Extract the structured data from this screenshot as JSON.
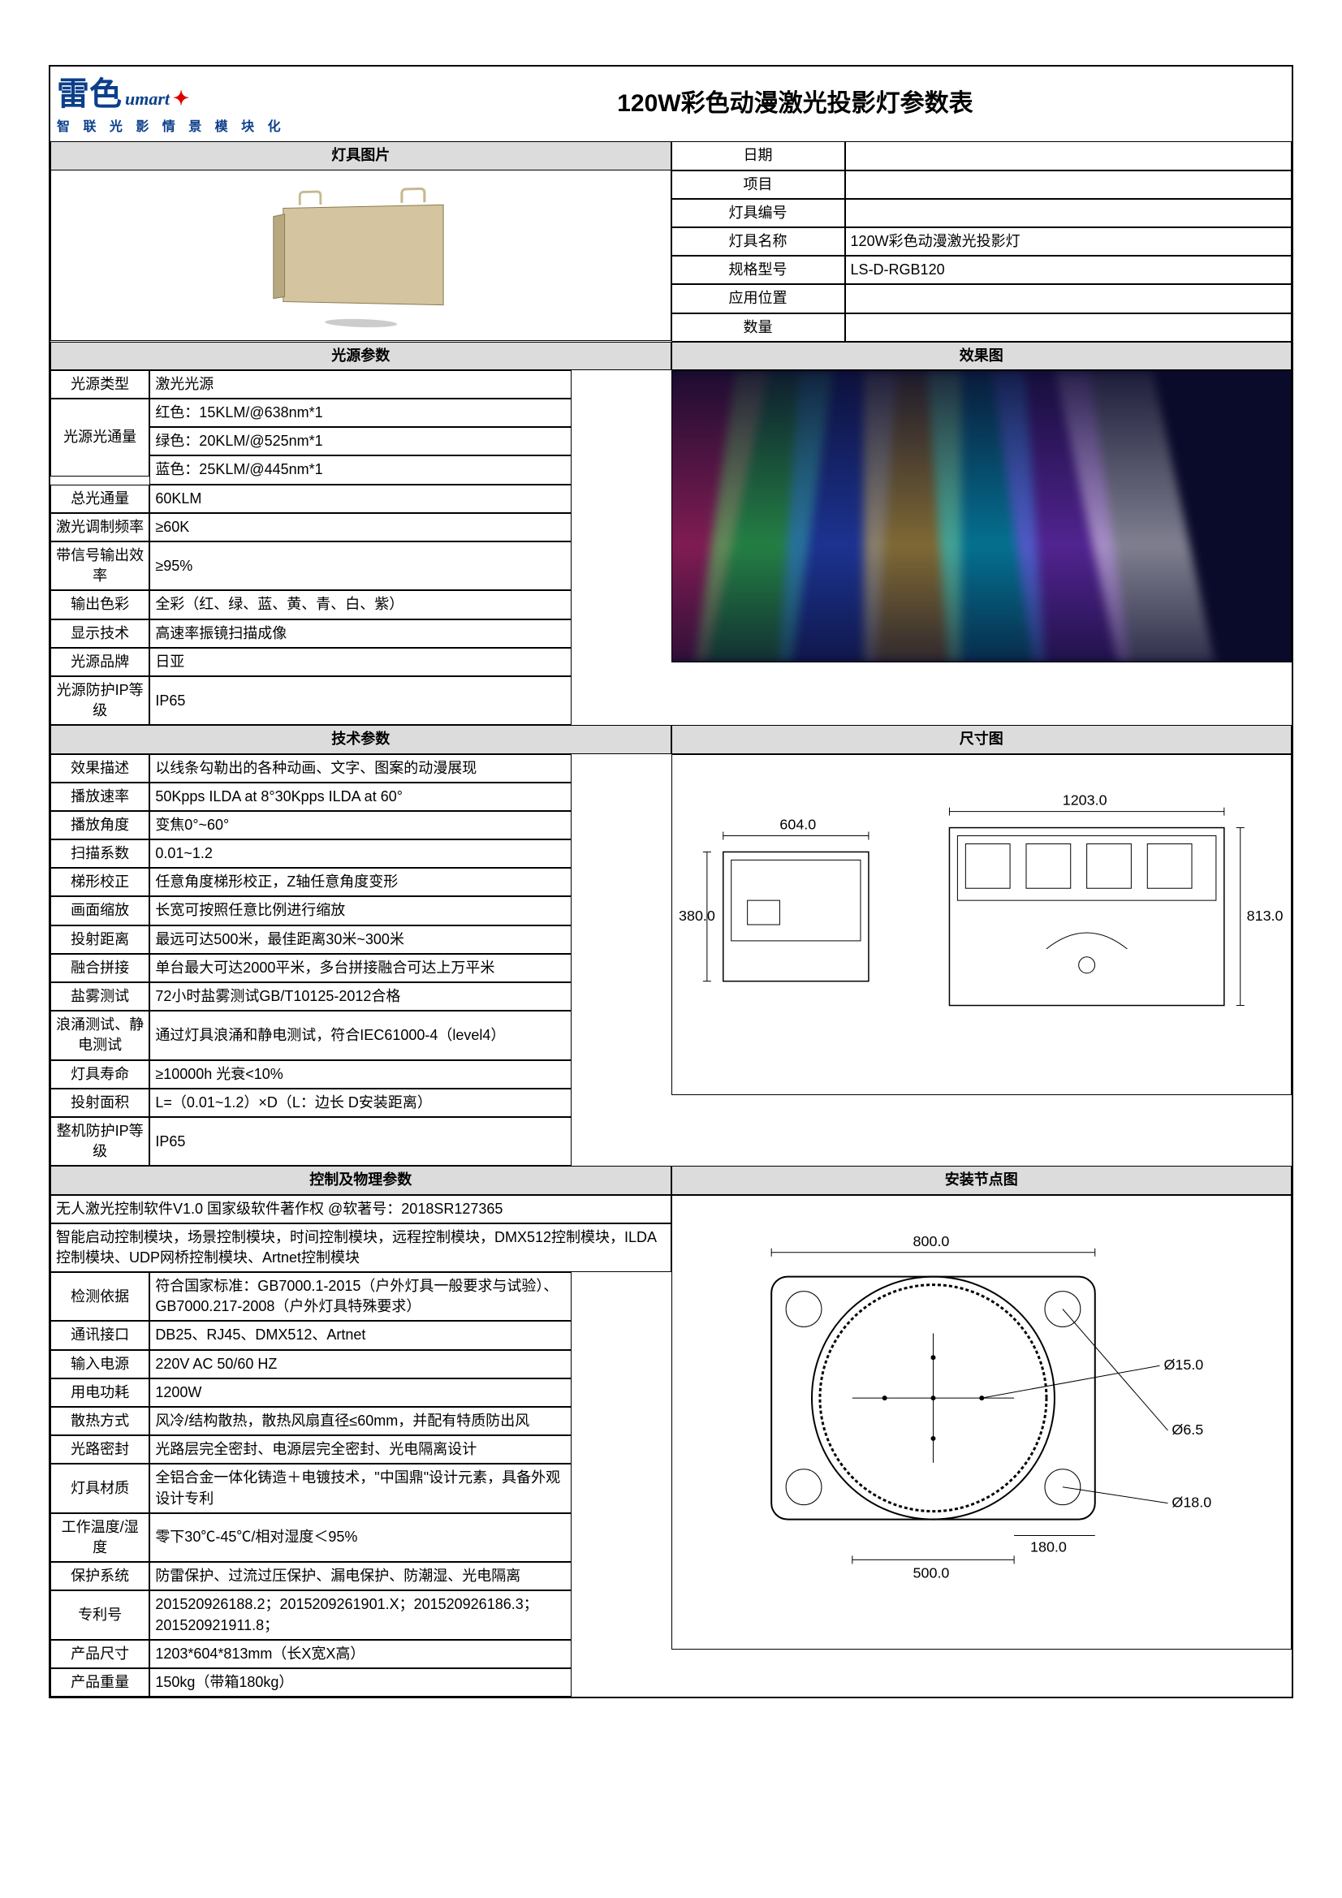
{
  "logo": {
    "cn": "雷色",
    "en": "umart",
    "tagline": "智 联 光 影 情 景 模 块 化"
  },
  "title": "120W彩色动漫激光投影灯参数表",
  "top": {
    "photo_label": "灯具图片",
    "fields": [
      {
        "label": "日期",
        "value": ""
      },
      {
        "label": "项目",
        "value": ""
      },
      {
        "label": "灯具编号",
        "value": ""
      },
      {
        "label": "灯具名称",
        "value": "120W彩色动漫激光投影灯"
      },
      {
        "label": "规格型号",
        "value": "LS-D-RGB120"
      },
      {
        "label": "应用位置",
        "value": ""
      },
      {
        "label": "数量",
        "value": ""
      }
    ]
  },
  "sections": [
    {
      "left": "光源参数",
      "right": "效果图"
    },
    {
      "left": "技术参数",
      "right": "尺寸图"
    },
    {
      "left": "控制及物理参数",
      "right": "安装节点图"
    }
  ],
  "light_source": [
    {
      "label": "光源类型",
      "value": "激光光源"
    },
    {
      "label": "光源光通量",
      "values": [
        "红色：15KLM/@638nm*1",
        "绿色：20KLM/@525nm*1",
        "蓝色：25KLM/@445nm*1"
      ]
    },
    {
      "label": "总光通量",
      "value": "60KLM"
    },
    {
      "label": "激光调制频率",
      "value": "≥60K"
    },
    {
      "label": "带信号输出效率",
      "value": "≥95%"
    },
    {
      "label": "输出色彩",
      "value": "全彩（红、绿、蓝、黄、青、白、紫）"
    },
    {
      "label": "显示技术",
      "value": "高速率振镜扫描成像"
    },
    {
      "label": "光源品牌",
      "value": "日亚"
    },
    {
      "label": "光源防护IP等级",
      "value": "IP65"
    }
  ],
  "tech": [
    {
      "label": "效果描述",
      "value": "以线条勾勒出的各种动画、文字、图案的动漫展现"
    },
    {
      "label": "播放速率",
      "value": "50Kpps ILDA at 8°30Kpps ILDA at 60°"
    },
    {
      "label": "播放角度",
      "value": "变焦0°~60°"
    },
    {
      "label": "扫描系数",
      "value": "0.01~1.2"
    },
    {
      "label": "梯形校正",
      "value": "任意角度梯形校正，Z轴任意角度变形"
    },
    {
      "label": "画面缩放",
      "value": "长宽可按照任意比例进行缩放"
    },
    {
      "label": "投射距离",
      "value": "最远可达500米，最佳距离30米~300米"
    },
    {
      "label": "融合拼接",
      "value": "单台最大可达2000平米，多台拼接融合可达上万平米"
    },
    {
      "label": "盐雾测试",
      "value": "72小时盐雾测试GB/T10125-2012合格"
    },
    {
      "label": "浪涌测试、静电测试",
      "value": "通过灯具浪涌和静电测试，符合IEC61000-4（level4）"
    },
    {
      "label": "灯具寿命",
      "value": "≥10000h 光衰<10%"
    },
    {
      "label": "投射面积",
      "value": "L=（0.01~1.2）×D（L：边长 D安装距离）"
    },
    {
      "label": "整机防护IP等级",
      "value": "IP65"
    }
  ],
  "control_pre": [
    "无人激光控制软件V1.0  国家级软件著作权 @软著号：2018SR127365",
    "智能启动控制模块，场景控制模块，时间控制模块，远程控制模块，DMX512控制模块，ILDA控制模块、UDP网桥控制模块、Artnet控制模块"
  ],
  "control": [
    {
      "label": "检测依据",
      "value": "符合国家标准：GB7000.1-2015（户外灯具一般要求与试验）、GB7000.217-2008（户外灯具特殊要求）"
    },
    {
      "label": "通讯接口",
      "value": "DB25、RJ45、DMX512、Artnet"
    },
    {
      "label": "输入电源",
      "value": "220V AC 50/60 HZ"
    },
    {
      "label": "用电功耗",
      "value": "1200W"
    },
    {
      "label": "散热方式",
      "value": "风冷/结构散热，散热风扇直径≤60mm，并配有特质防出风"
    },
    {
      "label": "光路密封",
      "value": "光路层完全密封、电源层完全密封、光电隔离设计"
    },
    {
      "label": "灯具材质",
      "value": "全铝合金一体化铸造＋电镀技术，\"中国鼎\"设计元素，具备外观设计专利"
    },
    {
      "label": "工作温度/湿度",
      "value": "零下30℃-45℃/相对湿度＜95%"
    },
    {
      "label": "保护系统",
      "value": "防雷保护、过流过压保护、漏电保护、防潮湿、光电隔离"
    },
    {
      "label": "专利号",
      "value": "201520926188.2；2015209261901.X；201520926186.3；201520921911.8；"
    },
    {
      "label": "产品尺寸",
      "value": "1203*604*813mm（长X宽X高）"
    },
    {
      "label": "产品重量",
      "value": "150kg（带箱180kg）"
    }
  ],
  "dims": {
    "front_w": "604.0",
    "front_h": "380.0",
    "back_w": "1203.0",
    "back_h": "813.0",
    "mount_w": "800.0",
    "mount_h": "500.0",
    "mount_side": "180.0",
    "d1": "Ø15.0",
    "d2": "Ø6.5",
    "d3": "Ø18.0"
  },
  "effect_colors": [
    "#ff3080",
    "#40ff60",
    "#3060ff",
    "#ffd040",
    "#00e0ff",
    "#a040ff",
    "#ffffff"
  ]
}
